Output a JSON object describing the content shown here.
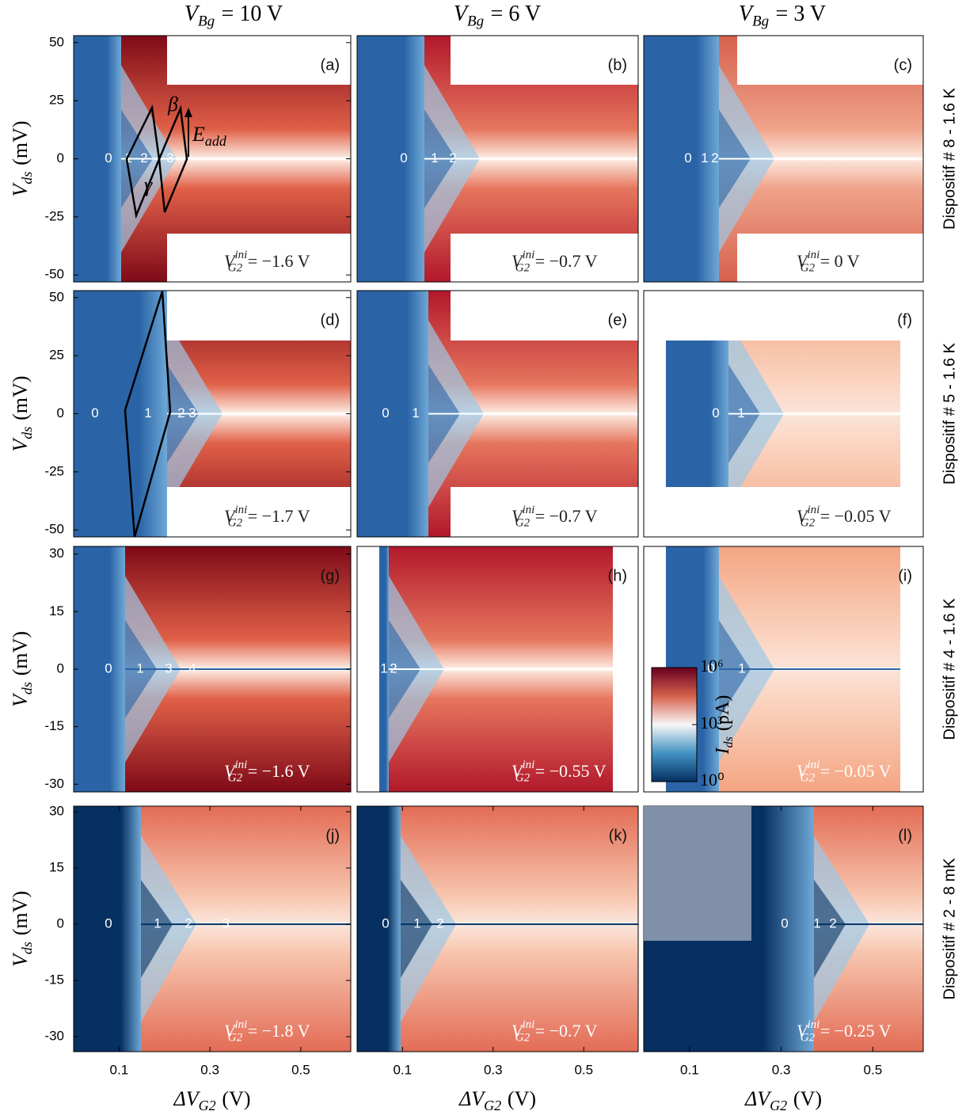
{
  "column_titles": [
    {
      "base": "V",
      "sub": "Bg",
      "text": "= 10 V"
    },
    {
      "base": "V",
      "sub": "Bg",
      "text": "= 6 V"
    },
    {
      "base": "V",
      "sub": "Bg",
      "text": "= 3 V"
    }
  ],
  "row_labels": [
    "Dispositif # 8 - 1.6 K",
    "Dispositif # 5 - 1.6 K",
    "Dispositif # 4 - 1.6 K",
    "Dispositif # 2 - 8 mK"
  ],
  "colorbar": {
    "label": {
      "base": "I",
      "sub": "ds",
      "text": "(pA)"
    },
    "scale": "log",
    "lim": [
      1,
      1000000
    ],
    "ticks": [
      {
        "value": 1000000,
        "label": "10⁶"
      },
      {
        "value": 1000,
        "label": "10³"
      },
      {
        "value": 1,
        "label": "10⁰"
      }
    ]
  },
  "chart_data": [
    {
      "type": "heatmap",
      "panel": "(a)",
      "xlim": [
        0,
        0.61
      ],
      "ylim": [
        -53,
        53
      ],
      "yticks": [
        50,
        25,
        0,
        -25,
        -50
      ],
      "ylabel": {
        "base": "V",
        "sub": "ds",
        "text": "(mV)"
      },
      "vini": {
        "base": "V",
        "sub": "G2",
        "sup": "ini",
        "text": "= −1.6 V"
      },
      "states": [
        "0",
        "1",
        "2",
        "3"
      ],
      "annotations": [
        {
          "text": "β"
        },
        {
          "text": "γ"
        },
        {
          "base": "E",
          "sub": "add"
        }
      ]
    },
    {
      "type": "heatmap",
      "panel": "(b)",
      "xlim": [
        0,
        0.62
      ],
      "ylim": [
        -53,
        53
      ],
      "vini": {
        "base": "V",
        "sub": "G2",
        "sup": "ini",
        "text": "= −0.7 V"
      },
      "states": [
        "0",
        "1",
        "2"
      ]
    },
    {
      "type": "heatmap",
      "panel": "(c)",
      "xlim": [
        0,
        0.61
      ],
      "ylim": [
        -53,
        53
      ],
      "vini": {
        "base": "V",
        "sub": "G2",
        "sup": "ini",
        "text": "= 0 V"
      },
      "states": [
        "0",
        "1",
        "2"
      ]
    },
    {
      "type": "heatmap",
      "panel": "(d)",
      "xlim": [
        0,
        0.61
      ],
      "ylim": [
        -53,
        53
      ],
      "yticks": [
        50,
        25,
        0,
        -25,
        -50
      ],
      "ylabel": {
        "base": "V",
        "sub": "ds",
        "text": "(mV)"
      },
      "vini": {
        "base": "V",
        "sub": "G2",
        "sup": "ini",
        "text": "= −1.7 V"
      },
      "states": [
        "0",
        "1",
        "2",
        "3"
      ]
    },
    {
      "type": "heatmap",
      "panel": "(e)",
      "xlim": [
        0,
        0.62
      ],
      "ylim": [
        -53,
        53
      ],
      "vini": {
        "base": "V",
        "sub": "G2",
        "sup": "ini",
        "text": "= −0.7 V"
      },
      "states": [
        "0",
        "1"
      ]
    },
    {
      "type": "heatmap",
      "panel": "(f)",
      "xlim": [
        0,
        0.61
      ],
      "ylim": [
        -53,
        53
      ],
      "vini": {
        "base": "V",
        "sub": "G2",
        "sup": "ini",
        "text": "= −0.05 V"
      },
      "states": [
        "0",
        "1"
      ]
    },
    {
      "type": "heatmap",
      "panel": "(g)",
      "xlim": [
        0,
        0.61
      ],
      "ylim": [
        -32,
        32
      ],
      "yticks": [
        30,
        15,
        0,
        -15,
        -30
      ],
      "ylabel": {
        "base": "V",
        "sub": "ds",
        "text": "(mV)"
      },
      "vini": {
        "base": "V",
        "sub": "G2",
        "sup": "ini",
        "text": "= −1.6 V"
      },
      "states": [
        "0",
        "1",
        "3",
        "4"
      ]
    },
    {
      "type": "heatmap",
      "panel": "(h)",
      "xlim": [
        0,
        0.62
      ],
      "ylim": [
        -32,
        32
      ],
      "vini": {
        "base": "V",
        "sub": "G2",
        "sup": "ini",
        "text": "= −0.55 V"
      },
      "states": [
        "1",
        "2"
      ]
    },
    {
      "type": "heatmap",
      "panel": "(i)",
      "xlim": [
        0,
        0.61
      ],
      "ylim": [
        -32,
        32
      ],
      "vini": {
        "base": "V",
        "sub": "G2",
        "sup": "ini",
        "text": "= −0.05 V"
      },
      "states": [
        "0",
        "1"
      ]
    },
    {
      "type": "heatmap",
      "panel": "(j)",
      "xlim": [
        0,
        0.61
      ],
      "ylim": [
        -34,
        31.5
      ],
      "yticks": [
        30,
        15,
        0,
        -15,
        -30
      ],
      "xticks": [
        0.1,
        0.3,
        0.5
      ],
      "ylabel": {
        "base": "V",
        "sub": "ds",
        "text": "(mV)"
      },
      "xlabel": {
        "base": "ΔV",
        "sub": "G2",
        "text": "(V)"
      },
      "vini": {
        "base": "V",
        "sub": "G2",
        "sup": "ini",
        "text": "= −1.8 V"
      },
      "states": [
        "0",
        "1",
        "2",
        "3"
      ]
    },
    {
      "type": "heatmap",
      "panel": "(k)",
      "xlim": [
        0,
        0.62
      ],
      "ylim": [
        -34,
        31.5
      ],
      "xticks": [
        0.1,
        0.3,
        0.5
      ],
      "xlabel": {
        "base": "ΔV",
        "sub": "G2",
        "text": "(V)"
      },
      "vini": {
        "base": "V",
        "sub": "G2",
        "sup": "ini",
        "text": "= −0.7 V"
      },
      "states": [
        "0",
        "1",
        "2"
      ]
    },
    {
      "type": "heatmap",
      "panel": "(l)",
      "xlim": [
        0,
        0.61
      ],
      "ylim": [
        -34,
        31.5
      ],
      "xticks": [
        0.1,
        0.3,
        0.5
      ],
      "xlabel": {
        "base": "ΔV",
        "sub": "G2",
        "text": "(V)"
      },
      "vini": {
        "base": "V",
        "sub": "G2",
        "sup": "ini",
        "text": "= −0.25 V"
      },
      "states": [
        "0",
        "1",
        "2"
      ]
    }
  ]
}
